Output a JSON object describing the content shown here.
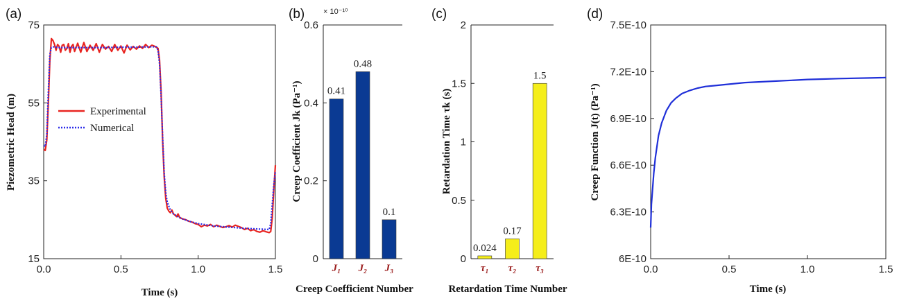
{
  "chart_data": [
    {
      "type": "line",
      "panel": "(a)",
      "xlabel": "Time (s)",
      "ylabel": "Piezometric Head (m)",
      "xlim": [
        0,
        1.5
      ],
      "ylim": [
        15,
        75
      ],
      "xticks": [
        "0.0",
        "0.5",
        "1.0",
        "1.5"
      ],
      "yticks": [
        "15",
        "35",
        "55",
        "75"
      ],
      "legend": "center-left",
      "series": [
        {
          "name": "Experimental",
          "color": "#e8231f",
          "style": "solid",
          "x": [
            0.0,
            0.01,
            0.02,
            0.03,
            0.04,
            0.05,
            0.06,
            0.07,
            0.08,
            0.09,
            0.1,
            0.11,
            0.12,
            0.13,
            0.14,
            0.15,
            0.16,
            0.17,
            0.18,
            0.19,
            0.2,
            0.22,
            0.24,
            0.26,
            0.28,
            0.3,
            0.32,
            0.34,
            0.36,
            0.38,
            0.4,
            0.42,
            0.44,
            0.46,
            0.48,
            0.5,
            0.52,
            0.54,
            0.56,
            0.58,
            0.6,
            0.62,
            0.64,
            0.66,
            0.68,
            0.7,
            0.72,
            0.74,
            0.75,
            0.76,
            0.77,
            0.78,
            0.79,
            0.8,
            0.81,
            0.82,
            0.83,
            0.84,
            0.85,
            0.86,
            0.87,
            0.88,
            0.9,
            0.92,
            0.94,
            0.96,
            0.98,
            1.0,
            1.02,
            1.04,
            1.06,
            1.08,
            1.1,
            1.12,
            1.14,
            1.16,
            1.18,
            1.2,
            1.22,
            1.24,
            1.26,
            1.28,
            1.3,
            1.32,
            1.34,
            1.36,
            1.38,
            1.4,
            1.42,
            1.44,
            1.46,
            1.47,
            1.48,
            1.49,
            1.5
          ],
          "y": [
            43,
            42.8,
            45.5,
            55,
            66,
            71.5,
            71,
            70,
            68.5,
            70,
            69.5,
            68,
            69.8,
            70,
            68.5,
            69,
            70.2,
            68,
            69.5,
            70,
            68.2,
            70.3,
            68,
            70.5,
            68.2,
            69.8,
            68.5,
            70.2,
            68,
            70,
            68.8,
            69.5,
            68.2,
            70,
            68.5,
            69.6,
            67.8,
            69.8,
            68.6,
            69.5,
            68.8,
            69.6,
            69,
            70,
            69.2,
            69.8,
            69.5,
            69,
            66,
            58,
            45,
            36,
            30.5,
            28,
            27.2,
            26.8,
            27.5,
            26.5,
            26.2,
            25.8,
            26.5,
            25.6,
            25.2,
            25,
            24.6,
            24.4,
            24,
            23.8,
            23.2,
            23.6,
            23.4,
            23.8,
            23.2,
            23.6,
            23.3,
            23.0,
            23.2,
            23.5,
            23.1,
            23.6,
            23.3,
            23.0,
            22.5,
            22.8,
            22.2,
            22.5,
            22.0,
            21.8,
            22.2,
            21.9,
            21.7,
            22.0,
            25.5,
            33,
            39
          ]
        },
        {
          "name": "Numerical",
          "color": "#2a2ae8",
          "style": "dotted",
          "x": [
            0.0,
            0.01,
            0.02,
            0.03,
            0.04,
            0.05,
            0.06,
            0.08,
            0.1,
            0.2,
            0.3,
            0.4,
            0.5,
            0.6,
            0.7,
            0.73,
            0.74,
            0.75,
            0.76,
            0.77,
            0.78,
            0.79,
            0.8,
            0.82,
            0.84,
            0.86,
            0.88,
            0.9,
            0.95,
            1.0,
            1.05,
            1.1,
            1.2,
            1.3,
            1.4,
            1.46,
            1.47,
            1.48,
            1.49,
            1.5
          ],
          "y": [
            44,
            43.8,
            47,
            58,
            67.5,
            69.2,
            69.4,
            69.3,
            69.2,
            69.2,
            69.2,
            69.2,
            69.3,
            69.3,
            69.4,
            69.4,
            68.5,
            65,
            57,
            46,
            37,
            32,
            29.5,
            27.5,
            26.5,
            26,
            25.5,
            25.2,
            24.5,
            24.0,
            23.7,
            23.4,
            23.1,
            22.8,
            22.6,
            22.5,
            24,
            29,
            34,
            37.5
          ]
        }
      ]
    },
    {
      "type": "bar",
      "panel": "(b)",
      "xlabel": "Creep Coefficient Number",
      "ylabel": "Creep Coefficient Jk (Pa⁻¹)",
      "multiplier": "× 10⁻¹⁰",
      "ylim": [
        0,
        0.6
      ],
      "yticks": [
        "0",
        "0.2",
        "0.4",
        "0.6"
      ],
      "categories": [
        "J₁",
        "J₂",
        "J₃"
      ],
      "values": [
        0.41,
        0.48,
        0.1
      ],
      "labels": [
        "0.41",
        "0.48",
        "0.1"
      ],
      "color": "#0a3a93"
    },
    {
      "type": "bar",
      "panel": "(c)",
      "xlabel": "Retardation Time Number",
      "ylabel": "Retardation Time τk (s)",
      "ylim": [
        0,
        2
      ],
      "yticks": [
        "0",
        "0.5",
        "1",
        "1.5",
        "2"
      ],
      "categories": [
        "τ₁",
        "τ₂",
        "τ₃"
      ],
      "values": [
        0.024,
        0.17,
        1.5
      ],
      "labels": [
        "0.024",
        "0.17",
        "1.5"
      ],
      "color": "#f5ee1a"
    },
    {
      "type": "line",
      "panel": "(d)",
      "xlabel": "Time (s)",
      "ylabel": "Creep Function J(t) (Pa⁻¹)",
      "xlim": [
        0,
        1.5
      ],
      "ylim": [
        6e-10,
        7.5e-10
      ],
      "xticks": [
        "0.0",
        "0.5",
        "1.0",
        "1.5"
      ],
      "yticks": [
        "6E-10",
        "6.3E-10",
        "6.6E-10",
        "6.9E-10",
        "7.2E-10",
        "7.5E-10"
      ],
      "series": [
        {
          "color": "#1f2fd8",
          "x": [
            0.0,
            0.005,
            0.01,
            0.02,
            0.03,
            0.05,
            0.07,
            0.1,
            0.13,
            0.16,
            0.2,
            0.25,
            0.3,
            0.35,
            0.4,
            0.5,
            0.6,
            0.7,
            0.8,
            0.9,
            1.0,
            1.1,
            1.2,
            1.3,
            1.4,
            1.5
          ],
          "y": [
            6.2e-10,
            6.35e-10,
            6.42e-10,
            6.55e-10,
            6.65e-10,
            6.79e-10,
            6.87e-10,
            6.95e-10,
            7e-10,
            7.03e-10,
            7.06e-10,
            7.08e-10,
            7.095e-10,
            7.105e-10,
            7.11e-10,
            7.12e-10,
            7.13e-10,
            7.135e-10,
            7.14e-10,
            7.145e-10,
            7.15e-10,
            7.153e-10,
            7.156e-10,
            7.158e-10,
            7.16e-10,
            7.162e-10
          ]
        }
      ]
    }
  ]
}
